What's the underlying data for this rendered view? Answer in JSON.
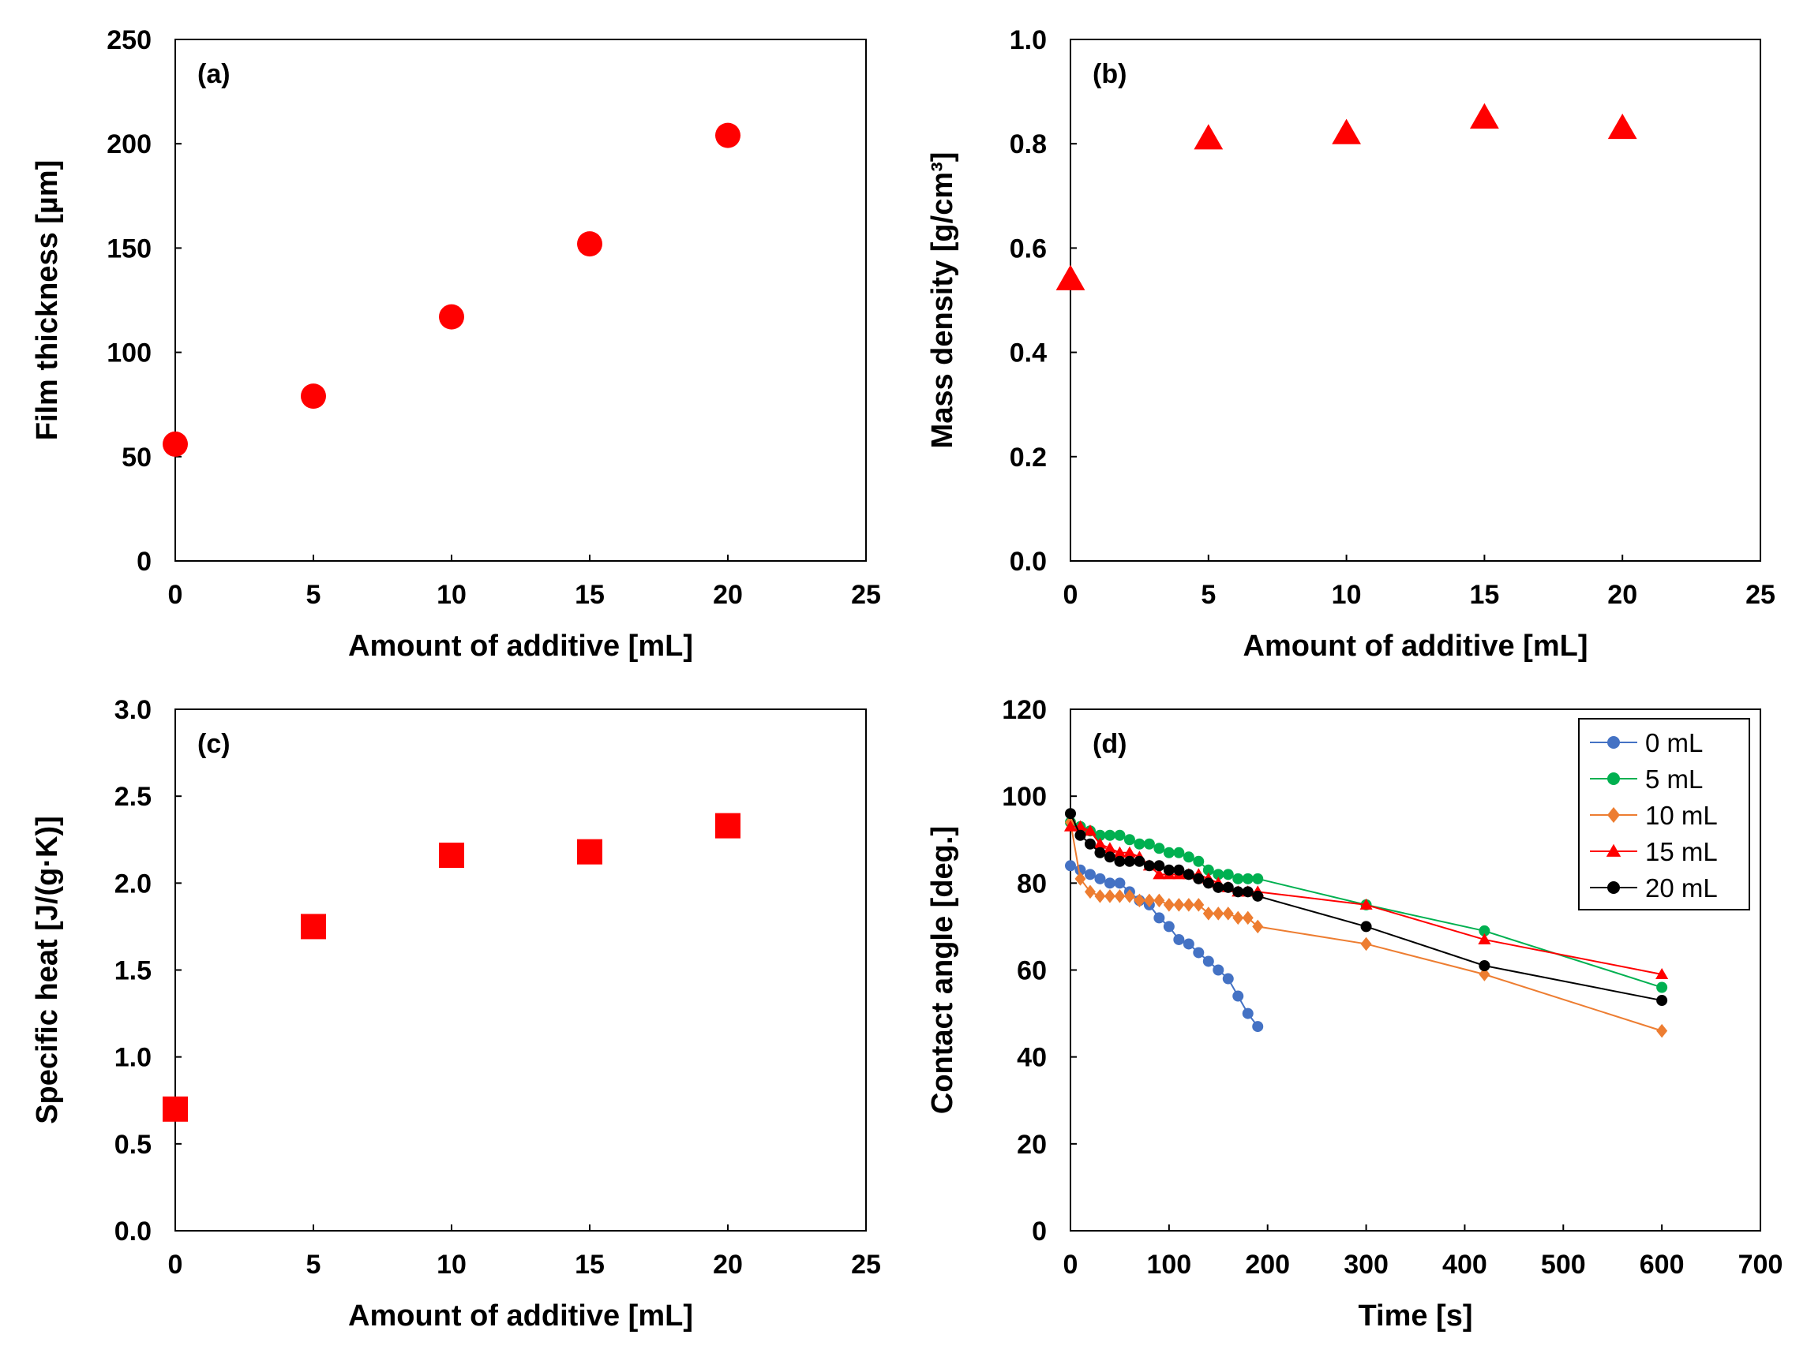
{
  "chart_data": [
    {
      "id": "a",
      "type": "scatter",
      "panel_label": "(a)",
      "xlabel": "Amount of additive [mL]",
      "ylabel": "Film thickness [µm]",
      "xlim": [
        0,
        25
      ],
      "ylim": [
        0,
        250
      ],
      "xticks": [
        0,
        5,
        10,
        15,
        20,
        25
      ],
      "yticks": [
        0,
        50,
        100,
        150,
        200,
        250
      ],
      "ytick_labels": [
        "0",
        "50",
        "100",
        "150",
        "200",
        "250"
      ],
      "grid": false,
      "series": [
        {
          "name": "Film thickness",
          "marker": "circle",
          "color": "#ff0000",
          "x": [
            0,
            5,
            10,
            15,
            20
          ],
          "y": [
            56,
            79,
            117,
            152,
            204
          ]
        }
      ]
    },
    {
      "id": "b",
      "type": "scatter",
      "panel_label": "(b)",
      "xlabel": "Amount of additive [mL]",
      "ylabel": "Mass density [g/cm³]",
      "xlim": [
        0,
        25
      ],
      "ylim": [
        0,
        1
      ],
      "xticks": [
        0,
        5,
        10,
        15,
        20,
        25
      ],
      "yticks": [
        0,
        0.2,
        0.4,
        0.6,
        0.8,
        1.0
      ],
      "ytick_labels": [
        "0.0",
        "0.2",
        "0.4",
        "0.6",
        "0.8",
        "1.0"
      ],
      "grid": false,
      "series": [
        {
          "name": "Mass density",
          "marker": "triangle",
          "color": "#ff0000",
          "x": [
            0,
            5,
            10,
            15,
            20
          ],
          "y": [
            0.54,
            0.81,
            0.82,
            0.85,
            0.83
          ]
        }
      ]
    },
    {
      "id": "c",
      "type": "scatter",
      "panel_label": "(c)",
      "xlabel": "Amount of additive [mL]",
      "ylabel": "Specific heat [J/(g·K)]",
      "xlim": [
        0,
        25
      ],
      "ylim": [
        0,
        3
      ],
      "xticks": [
        0,
        5,
        10,
        15,
        20,
        25
      ],
      "yticks": [
        0,
        0.5,
        1.0,
        1.5,
        2.0,
        2.5,
        3.0
      ],
      "ytick_labels": [
        "0.0",
        "0.5",
        "1.0",
        "1.5",
        "2.0",
        "2.5",
        "3.0"
      ],
      "grid": false,
      "series": [
        {
          "name": "Specific heat",
          "marker": "square",
          "color": "#ff0000",
          "x": [
            0,
            5,
            10,
            15,
            20
          ],
          "y": [
            0.7,
            1.75,
            2.16,
            2.18,
            2.33
          ]
        }
      ]
    },
    {
      "id": "d",
      "type": "line",
      "panel_label": "(d)",
      "xlabel": "Time [s]",
      "ylabel": "Contact angle [deg.]",
      "xlim": [
        0,
        700
      ],
      "ylim": [
        0,
        120
      ],
      "xticks": [
        0,
        100,
        200,
        300,
        400,
        500,
        600,
        700
      ],
      "yticks": [
        0,
        20,
        40,
        60,
        80,
        100,
        120
      ],
      "ytick_labels": [
        "0",
        "20",
        "40",
        "60",
        "80",
        "100",
        "120"
      ],
      "grid": false,
      "legend": "top-right",
      "series": [
        {
          "name": "0 mL",
          "marker": "circle",
          "color": "#4472c4",
          "x": [
            0,
            10,
            20,
            30,
            40,
            50,
            60,
            70,
            80,
            90,
            100,
            110,
            120,
            130,
            140,
            150,
            160,
            170,
            180,
            190
          ],
          "y": [
            84,
            83,
            82,
            81,
            80,
            80,
            78,
            76,
            75,
            72,
            70,
            67,
            66,
            64,
            62,
            60,
            58,
            54,
            50,
            47
          ]
        },
        {
          "name": "5 mL",
          "marker": "circle",
          "color": "#00b050",
          "x": [
            0,
            10,
            20,
            30,
            40,
            50,
            60,
            70,
            80,
            90,
            100,
            110,
            120,
            130,
            140,
            150,
            160,
            170,
            180,
            190,
            300,
            420,
            600
          ],
          "y": [
            94,
            93,
            92,
            91,
            91,
            91,
            90,
            89,
            89,
            88,
            87,
            87,
            86,
            85,
            83,
            82,
            82,
            81,
            81,
            81,
            75,
            69,
            56
          ]
        },
        {
          "name": "10 mL",
          "marker": "diamond",
          "color": "#ed7d31",
          "x": [
            0,
            10,
            20,
            30,
            40,
            50,
            60,
            70,
            80,
            90,
            100,
            110,
            120,
            130,
            140,
            150,
            160,
            170,
            180,
            190,
            300,
            420,
            600
          ],
          "y": [
            94,
            81,
            78,
            77,
            77,
            77,
            77,
            76,
            76,
            76,
            75,
            75,
            75,
            75,
            73,
            73,
            73,
            72,
            72,
            70,
            66,
            59,
            46
          ]
        },
        {
          "name": "15 mL",
          "marker": "triangle",
          "color": "#ff0000",
          "x": [
            0,
            10,
            20,
            30,
            40,
            50,
            60,
            70,
            80,
            90,
            100,
            110,
            120,
            130,
            140,
            150,
            160,
            170,
            180,
            190,
            300,
            420,
            600
          ],
          "y": [
            93,
            93,
            92,
            89,
            88,
            87,
            87,
            86,
            84,
            82,
            82,
            82,
            82,
            82,
            81,
            80,
            79,
            78,
            78,
            78,
            75,
            67,
            59
          ]
        },
        {
          "name": "20 mL",
          "marker": "circle",
          "color": "#000000",
          "x": [
            0,
            10,
            20,
            30,
            40,
            50,
            60,
            70,
            80,
            90,
            100,
            110,
            120,
            130,
            140,
            150,
            160,
            170,
            180,
            190,
            300,
            420,
            600
          ],
          "y": [
            96,
            91,
            89,
            87,
            86,
            85,
            85,
            85,
            84,
            84,
            83,
            83,
            82,
            81,
            80,
            79,
            79,
            78,
            78,
            77,
            70,
            61,
            53
          ]
        }
      ]
    }
  ]
}
